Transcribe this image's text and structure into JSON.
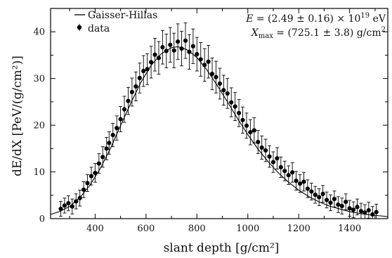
{
  "chart_data": {
    "type": "scatter",
    "xlabel": "slant depth [g/cm²]",
    "ylabel": "dE/dX [PeV/(g/cm²)]",
    "xlim": [
      225,
      1550
    ],
    "ylim": [
      0,
      45
    ],
    "xticks": [
      400,
      600,
      800,
      1000,
      1200,
      1400
    ],
    "yticks": [
      0,
      10,
      20,
      30,
      40
    ],
    "legend": {
      "placement": "top-left",
      "entries": [
        {
          "label": "Gaisser-Hillas",
          "marker": "line"
        },
        {
          "label": "data",
          "marker": "point-with-errorbar"
        }
      ]
    },
    "annotations": {
      "energy": {
        "lhs": "E",
        "text": " = (2.49 ± 0.16) × 10",
        "exp": "19",
        "unit": " eV"
      },
      "xmax": {
        "lhs": "X",
        "sub": "max",
        "text": " = (725.1 ± 3.8) g/cm",
        "exp": "2"
      }
    },
    "series": [
      {
        "name": "Gaisser-Hillas",
        "kind": "line",
        "x": [
          225,
          260,
          300,
          340,
          380,
          420,
          460,
          500,
          540,
          580,
          620,
          660,
          700,
          725,
          760,
          800,
          840,
          880,
          920,
          960,
          1000,
          1040,
          1080,
          1120,
          1160,
          1200,
          1240,
          1280,
          1320,
          1360,
          1400,
          1440,
          1480,
          1520,
          1550
        ],
        "y": [
          0.9,
          1.5,
          2.6,
          4.5,
          7.2,
          10.7,
          15.0,
          19.9,
          24.7,
          29.2,
          32.8,
          35.3,
          36.6,
          36.8,
          36.2,
          34.5,
          31.8,
          28.5,
          25.0,
          21.4,
          18.0,
          14.9,
          12.2,
          9.8,
          7.8,
          6.1,
          4.7,
          3.6,
          2.7,
          2.1,
          1.5,
          1.1,
          0.8,
          0.6,
          0.4
        ]
      },
      {
        "name": "data",
        "kind": "points-with-error",
        "x": [
          265,
          280,
          295,
          310,
          325,
          340,
          355,
          370,
          385,
          400,
          415,
          430,
          445,
          455,
          470,
          485,
          500,
          515,
          530,
          545,
          560,
          575,
          590,
          605,
          620,
          635,
          650,
          665,
          680,
          695,
          710,
          725,
          740,
          755,
          770,
          785,
          800,
          815,
          830,
          845,
          860,
          875,
          890,
          905,
          920,
          935,
          950,
          965,
          980,
          995,
          1010,
          1025,
          1040,
          1055,
          1070,
          1085,
          1100,
          1115,
          1130,
          1145,
          1160,
          1175,
          1190,
          1205,
          1220,
          1235,
          1250,
          1265,
          1280,
          1295,
          1310,
          1325,
          1340,
          1355,
          1370,
          1385,
          1400,
          1415,
          1430,
          1445,
          1460,
          1475,
          1490,
          1505
        ],
        "y": [
          2.1,
          2.8,
          3.3,
          2.6,
          3.7,
          4.4,
          6.2,
          7.6,
          9.1,
          9.8,
          11.8,
          13.2,
          15.0,
          16.2,
          17.9,
          19.4,
          21.3,
          23.4,
          25.2,
          27.1,
          28.3,
          30.1,
          31.6,
          32.0,
          33.5,
          35.1,
          34.4,
          36.7,
          35.9,
          37.2,
          36.0,
          37.9,
          36.4,
          38.1,
          35.7,
          36.9,
          35.2,
          34.1,
          32.9,
          33.6,
          31.0,
          30.3,
          28.9,
          27.5,
          26.8,
          24.9,
          24.0,
          22.6,
          21.1,
          19.9,
          18.5,
          18.9,
          16.4,
          15.2,
          14.6,
          13.3,
          12.1,
          12.9,
          11.0,
          10.2,
          9.3,
          9.9,
          8.1,
          7.5,
          7.9,
          6.4,
          5.8,
          5.1,
          4.6,
          5.3,
          4.0,
          3.4,
          4.2,
          3.0,
          2.7,
          3.6,
          2.2,
          1.9,
          2.5,
          1.6,
          1.3,
          1.8,
          0.9,
          1.4
        ],
        "err": [
          1.6,
          1.6,
          1.6,
          1.6,
          1.6,
          1.7,
          1.7,
          1.8,
          1.9,
          2.0,
          2.1,
          2.2,
          2.4,
          2.4,
          2.5,
          2.6,
          2.7,
          2.8,
          2.9,
          3.0,
          3.1,
          3.2,
          3.3,
          3.3,
          3.4,
          3.5,
          3.5,
          3.6,
          3.6,
          3.7,
          3.7,
          3.8,
          3.7,
          3.8,
          3.7,
          3.7,
          3.6,
          3.6,
          3.5,
          3.5,
          3.4,
          3.4,
          3.3,
          3.2,
          3.2,
          3.1,
          3.0,
          2.9,
          2.8,
          2.7,
          2.7,
          2.7,
          2.5,
          2.5,
          2.4,
          2.3,
          2.2,
          2.3,
          2.2,
          2.1,
          2.0,
          2.1,
          2.0,
          1.9,
          2.0,
          1.9,
          1.8,
          1.8,
          1.8,
          1.8,
          1.7,
          1.7,
          1.7,
          1.7,
          1.7,
          1.7,
          1.7,
          1.7,
          1.7,
          1.7,
          1.7,
          1.7,
          1.7,
          1.7
        ]
      }
    ]
  }
}
